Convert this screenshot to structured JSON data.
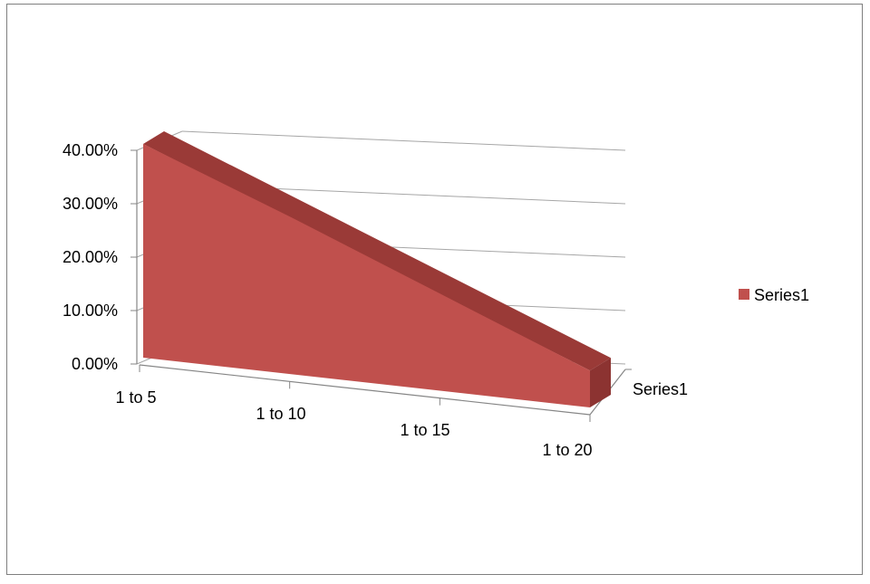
{
  "chart_data": {
    "type": "area",
    "style": "3d",
    "categories": [
      "1 to 5",
      "1 to 10",
      "1 to 15",
      "1 to 20"
    ],
    "series": [
      {
        "name": "Series1",
        "values": [
          0.4,
          0.293,
          0.181,
          0.069
        ],
        "color": "#c0504d"
      }
    ],
    "depth_axis_labels": [
      "Series1"
    ],
    "y_ticks": [
      "0.00%",
      "10.00%",
      "20.00%",
      "30.00%",
      "40.00%"
    ],
    "ylim": [
      0,
      0.4
    ],
    "grid": true,
    "legend": {
      "position": "right",
      "entries": [
        "Series1"
      ]
    },
    "colors": {
      "series_front": "#c0504d",
      "series_top": "#9a3a37",
      "series_side": "#8c3331",
      "gridline": "#a6a6a6",
      "axis": "#868686",
      "frame_border": "#7f7f7f"
    }
  }
}
